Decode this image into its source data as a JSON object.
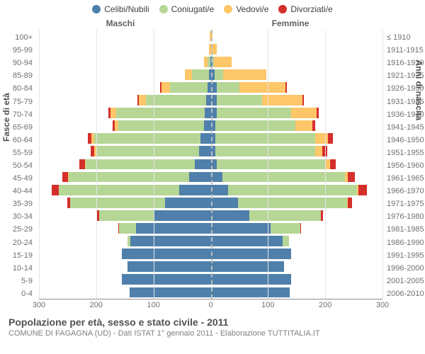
{
  "legend": [
    {
      "label": "Celibi/Nubili",
      "color": "#4f80ab"
    },
    {
      "label": "Coniugati/e",
      "color": "#b6d696"
    },
    {
      "label": "Vedovi/e",
      "color": "#fdc668"
    },
    {
      "label": "Divorziati/e",
      "color": "#d42f2b"
    }
  ],
  "headers": {
    "male": "Maschi",
    "female": "Femmine"
  },
  "axis_titles": {
    "left": "Fasce di età",
    "right": "Anni di nascita"
  },
  "footer": {
    "title": "Popolazione per età, sesso e stato civile - 2011",
    "subtitle": "COMUNE DI FAGAGNA (UD) - Dati ISTAT 1° gennaio 2011 - Elaborazione TUTTITALIA.IT"
  },
  "chart": {
    "type": "population-pyramid-stacked",
    "x_max": 300,
    "x_ticks": [
      300,
      200,
      100,
      0,
      100,
      200,
      300
    ],
    "background_color": "#ffffff",
    "grid_color": "#e5e5e5",
    "center_line_color": "#bfbfbf",
    "series_keys": [
      "single",
      "married",
      "widowed",
      "divorced"
    ],
    "rows": [
      {
        "age": "100+",
        "year": "≤ 1910",
        "m": {
          "single": 0,
          "married": 0,
          "widowed": 2,
          "divorced": 0
        },
        "f": {
          "single": 0,
          "married": 0,
          "widowed": 3,
          "divorced": 0
        }
      },
      {
        "age": "95-99",
        "year": "1911-1915",
        "m": {
          "single": 0,
          "married": 0,
          "widowed": 3,
          "divorced": 0
        },
        "f": {
          "single": 0,
          "married": 0,
          "widowed": 10,
          "divorced": 0
        }
      },
      {
        "age": "90-94",
        "year": "1916-1920",
        "m": {
          "single": 1,
          "married": 5,
          "widowed": 6,
          "divorced": 0
        },
        "f": {
          "single": 3,
          "married": 3,
          "widowed": 30,
          "divorced": 0
        }
      },
      {
        "age": "85-89",
        "year": "1921-1925",
        "m": {
          "single": 3,
          "married": 30,
          "widowed": 12,
          "divorced": 0
        },
        "f": {
          "single": 7,
          "married": 15,
          "widowed": 75,
          "divorced": 0
        }
      },
      {
        "age": "80-84",
        "year": "1926-1930",
        "m": {
          "single": 6,
          "married": 65,
          "widowed": 15,
          "divorced": 2
        },
        "f": {
          "single": 10,
          "married": 40,
          "widowed": 80,
          "divorced": 3
        }
      },
      {
        "age": "75-79",
        "year": "1931-1935",
        "m": {
          "single": 8,
          "married": 105,
          "widowed": 12,
          "divorced": 3
        },
        "f": {
          "single": 10,
          "married": 80,
          "widowed": 70,
          "divorced": 3
        }
      },
      {
        "age": "70-74",
        "year": "1936-1940",
        "m": {
          "single": 10,
          "married": 155,
          "widowed": 10,
          "divorced": 4
        },
        "f": {
          "single": 10,
          "married": 130,
          "widowed": 45,
          "divorced": 4
        }
      },
      {
        "age": "65-69",
        "year": "1941-1945",
        "m": {
          "single": 12,
          "married": 150,
          "widowed": 6,
          "divorced": 4
        },
        "f": {
          "single": 8,
          "married": 140,
          "widowed": 30,
          "divorced": 5
        }
      },
      {
        "age": "60-64",
        "year": "1946-1950",
        "m": {
          "single": 18,
          "married": 185,
          "widowed": 5,
          "divorced": 7
        },
        "f": {
          "single": 8,
          "married": 175,
          "widowed": 22,
          "divorced": 8
        }
      },
      {
        "age": "55-59",
        "year": "1951-1955",
        "m": {
          "single": 20,
          "married": 180,
          "widowed": 3,
          "divorced": 7
        },
        "f": {
          "single": 8,
          "married": 175,
          "widowed": 12,
          "divorced": 8
        }
      },
      {
        "age": "50-54",
        "year": "1956-1960",
        "m": {
          "single": 28,
          "married": 190,
          "widowed": 2,
          "divorced": 10
        },
        "f": {
          "single": 10,
          "married": 190,
          "widowed": 8,
          "divorced": 10
        }
      },
      {
        "age": "45-49",
        "year": "1961-1965",
        "m": {
          "single": 38,
          "married": 210,
          "widowed": 1,
          "divorced": 10
        },
        "f": {
          "single": 20,
          "married": 215,
          "widowed": 5,
          "divorced": 12
        }
      },
      {
        "age": "40-44",
        "year": "1966-1970",
        "m": {
          "single": 55,
          "married": 210,
          "widowed": 1,
          "divorced": 12
        },
        "f": {
          "single": 30,
          "married": 225,
          "widowed": 3,
          "divorced": 15
        }
      },
      {
        "age": "35-39",
        "year": "1971-1975",
        "m": {
          "single": 80,
          "married": 165,
          "widowed": 0,
          "divorced": 6
        },
        "f": {
          "single": 48,
          "married": 190,
          "widowed": 1,
          "divorced": 8
        }
      },
      {
        "age": "30-34",
        "year": "1976-1980",
        "m": {
          "single": 100,
          "married": 95,
          "widowed": 0,
          "divorced": 3
        },
        "f": {
          "single": 68,
          "married": 125,
          "widowed": 0,
          "divorced": 3
        }
      },
      {
        "age": "25-29",
        "year": "1981-1985",
        "m": {
          "single": 130,
          "married": 30,
          "widowed": 0,
          "divorced": 1
        },
        "f": {
          "single": 105,
          "married": 52,
          "widowed": 0,
          "divorced": 1
        }
      },
      {
        "age": "20-24",
        "year": "1986-1990",
        "m": {
          "single": 140,
          "married": 5,
          "widowed": 0,
          "divorced": 0
        },
        "f": {
          "single": 125,
          "married": 12,
          "widowed": 0,
          "divorced": 0
        }
      },
      {
        "age": "15-19",
        "year": "1991-1995",
        "m": {
          "single": 155,
          "married": 0,
          "widowed": 0,
          "divorced": 0
        },
        "f": {
          "single": 140,
          "married": 0,
          "widowed": 0,
          "divorced": 0
        }
      },
      {
        "age": "10-14",
        "year": "1996-2000",
        "m": {
          "single": 145,
          "married": 0,
          "widowed": 0,
          "divorced": 0
        },
        "f": {
          "single": 128,
          "married": 0,
          "widowed": 0,
          "divorced": 0
        }
      },
      {
        "age": "5-9",
        "year": "2001-2005",
        "m": {
          "single": 155,
          "married": 0,
          "widowed": 0,
          "divorced": 0
        },
        "f": {
          "single": 140,
          "married": 0,
          "widowed": 0,
          "divorced": 0
        }
      },
      {
        "age": "0-4",
        "year": "2006-2010",
        "m": {
          "single": 142,
          "married": 0,
          "widowed": 0,
          "divorced": 0
        },
        "f": {
          "single": 138,
          "married": 0,
          "widowed": 0,
          "divorced": 0
        }
      }
    ]
  }
}
